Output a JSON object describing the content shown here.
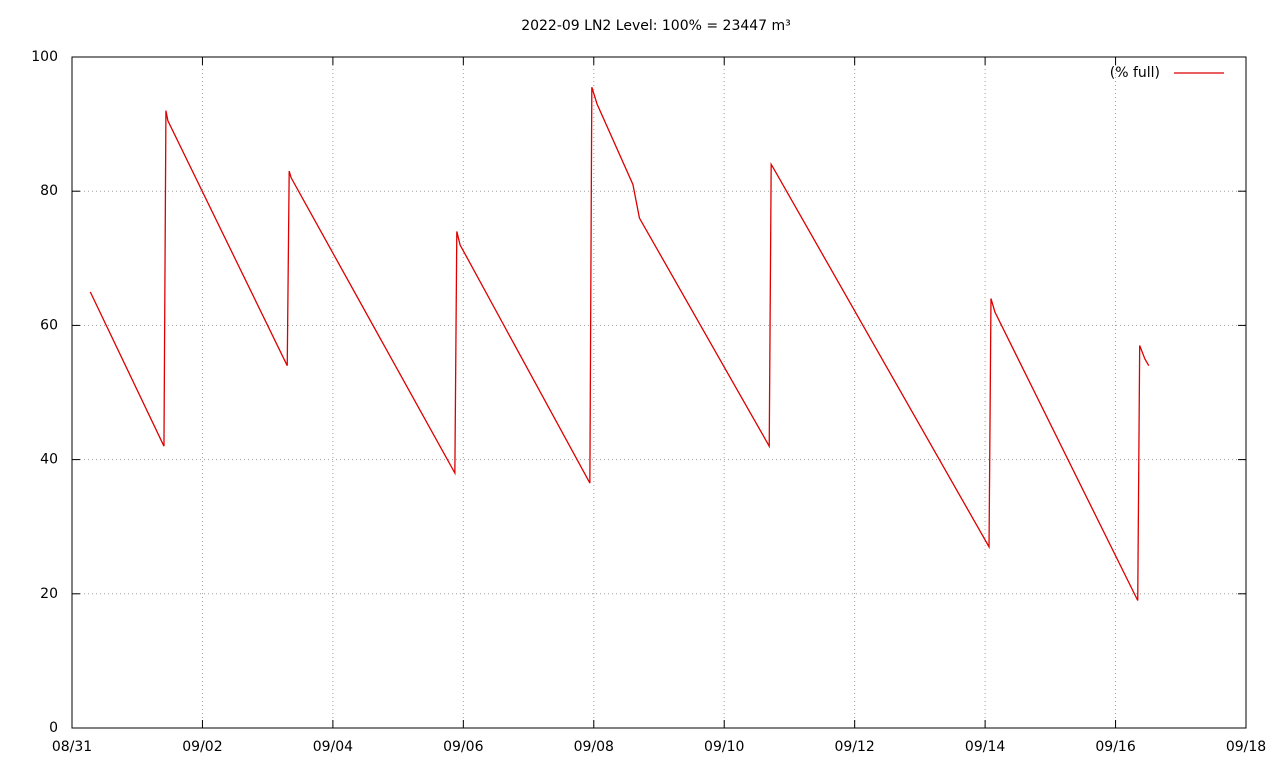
{
  "chart_data": {
    "type": "line",
    "title": "2022-09 LN2 Level: 100% = 23447 m³",
    "x": [
      0.28,
      1.41,
      1.44,
      1.47,
      3.3,
      3.33,
      3.36,
      5.87,
      5.9,
      5.95,
      7.94,
      7.97,
      8.05,
      8.6,
      8.7,
      10.69,
      10.72,
      10.78,
      14.06,
      14.09,
      14.15,
      16.34,
      16.37,
      16.45,
      16.51
    ],
    "series": [
      {
        "name": "(% full)",
        "color": "#dd0000",
        "values": [
          65,
          42,
          92,
          90.5,
          54,
          83,
          82,
          38,
          74,
          72,
          36.5,
          95.5,
          93,
          81,
          76,
          42,
          84,
          83,
          27,
          64,
          62,
          19,
          57,
          55,
          54
        ]
      }
    ],
    "xlim": [
      0,
      18
    ],
    "xticks": [
      {
        "value": 0,
        "label": "08/31"
      },
      {
        "value": 2,
        "label": "09/02"
      },
      {
        "value": 4,
        "label": "09/04"
      },
      {
        "value": 6,
        "label": "09/06"
      },
      {
        "value": 8,
        "label": "09/08"
      },
      {
        "value": 10,
        "label": "09/10"
      },
      {
        "value": 12,
        "label": "09/12"
      },
      {
        "value": 14,
        "label": "09/14"
      },
      {
        "value": 16,
        "label": "09/16"
      },
      {
        "value": 18,
        "label": "09/18"
      }
    ],
    "ylim": [
      0,
      100
    ],
    "yticks": [
      0,
      20,
      40,
      60,
      80,
      100
    ],
    "grid": true,
    "legend": "top-right"
  }
}
